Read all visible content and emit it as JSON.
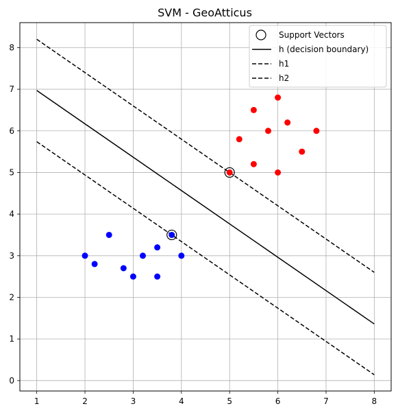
{
  "chart_data": {
    "type": "scatter",
    "title": "SVM - GeoAtticus",
    "xlabel": "",
    "ylabel": "",
    "xlim": [
      0.65,
      8.35
    ],
    "ylim": [
      -0.25,
      8.6
    ],
    "xticks": [
      1,
      2,
      3,
      4,
      5,
      6,
      7,
      8
    ],
    "yticks": [
      0,
      1,
      2,
      3,
      4,
      5,
      6,
      7,
      8
    ],
    "grid": true,
    "legend_position": "top-right",
    "series": [
      {
        "color": "#ff0000",
        "points": [
          [
            5.0,
            5.0
          ],
          [
            5.2,
            5.8
          ],
          [
            5.5,
            6.5
          ],
          [
            5.5,
            5.2
          ],
          [
            5.8,
            6.0
          ],
          [
            6.0,
            6.8
          ],
          [
            6.0,
            5.0
          ],
          [
            6.2,
            6.2
          ],
          [
            6.5,
            5.5
          ],
          [
            6.8,
            6.0
          ]
        ]
      },
      {
        "color": "#0000ff",
        "points": [
          [
            2.0,
            3.0
          ],
          [
            2.2,
            2.8
          ],
          [
            2.5,
            3.5
          ],
          [
            2.8,
            2.7
          ],
          [
            3.0,
            2.5
          ],
          [
            3.2,
            3.0
          ],
          [
            3.5,
            3.2
          ],
          [
            3.5,
            2.5
          ],
          [
            3.8,
            3.5
          ],
          [
            4.0,
            3.0
          ]
        ]
      }
    ],
    "support_vectors": {
      "name": "Support Vectors",
      "points": [
        [
          5.0,
          5.0
        ],
        [
          3.8,
          3.5
        ]
      ]
    },
    "lines": [
      {
        "name": "h (decision boundary)",
        "style": "solid",
        "x": [
          1,
          8
        ],
        "y": [
          6.97,
          1.36
        ]
      },
      {
        "name": "h1",
        "style": "dashed",
        "x": [
          1,
          8
        ],
        "y": [
          8.2,
          2.6
        ]
      },
      {
        "name": "h2",
        "style": "dashed",
        "x": [
          1,
          8
        ],
        "y": [
          5.74,
          0.14
        ]
      }
    ]
  }
}
